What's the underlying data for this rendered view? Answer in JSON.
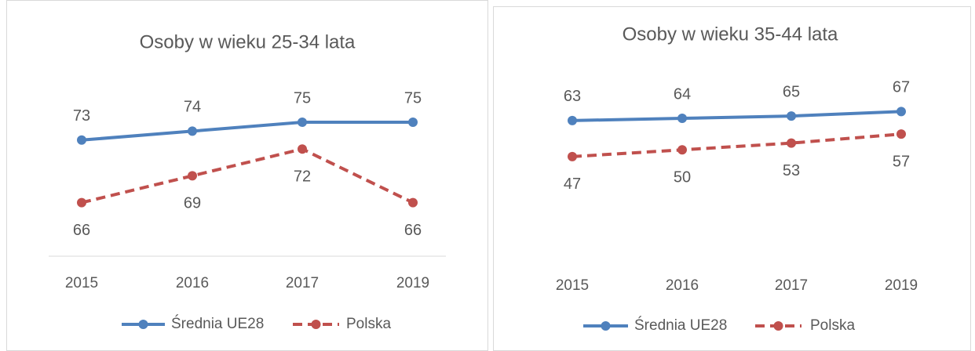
{
  "chart_data": [
    {
      "type": "line",
      "title": "Osoby w wieku 25-34 lata",
      "categories": [
        "2015",
        "2016",
        "2017",
        "2019"
      ],
      "series": [
        {
          "name": "Średnia UE28",
          "color": "#4f81bd",
          "dashed": false,
          "values": [
            73,
            74,
            75,
            75
          ]
        },
        {
          "name": "Polska",
          "color": "#c0504d",
          "dashed": true,
          "values": [
            66,
            69,
            72,
            66
          ]
        }
      ],
      "ylim": [
        60,
        80
      ],
      "legend": "bottom"
    },
    {
      "type": "line",
      "title": "Osoby w wieku 35-44 lata",
      "categories": [
        "2015",
        "2016",
        "2017",
        "2019"
      ],
      "series": [
        {
          "name": "Średnia UE28",
          "color": "#4f81bd",
          "dashed": false,
          "values": [
            63,
            64,
            65,
            67
          ]
        },
        {
          "name": "Polska",
          "color": "#c0504d",
          "dashed": true,
          "values": [
            47,
            50,
            53,
            57
          ]
        }
      ],
      "ylim": [
        0,
        80
      ],
      "legend": "bottom"
    }
  ]
}
